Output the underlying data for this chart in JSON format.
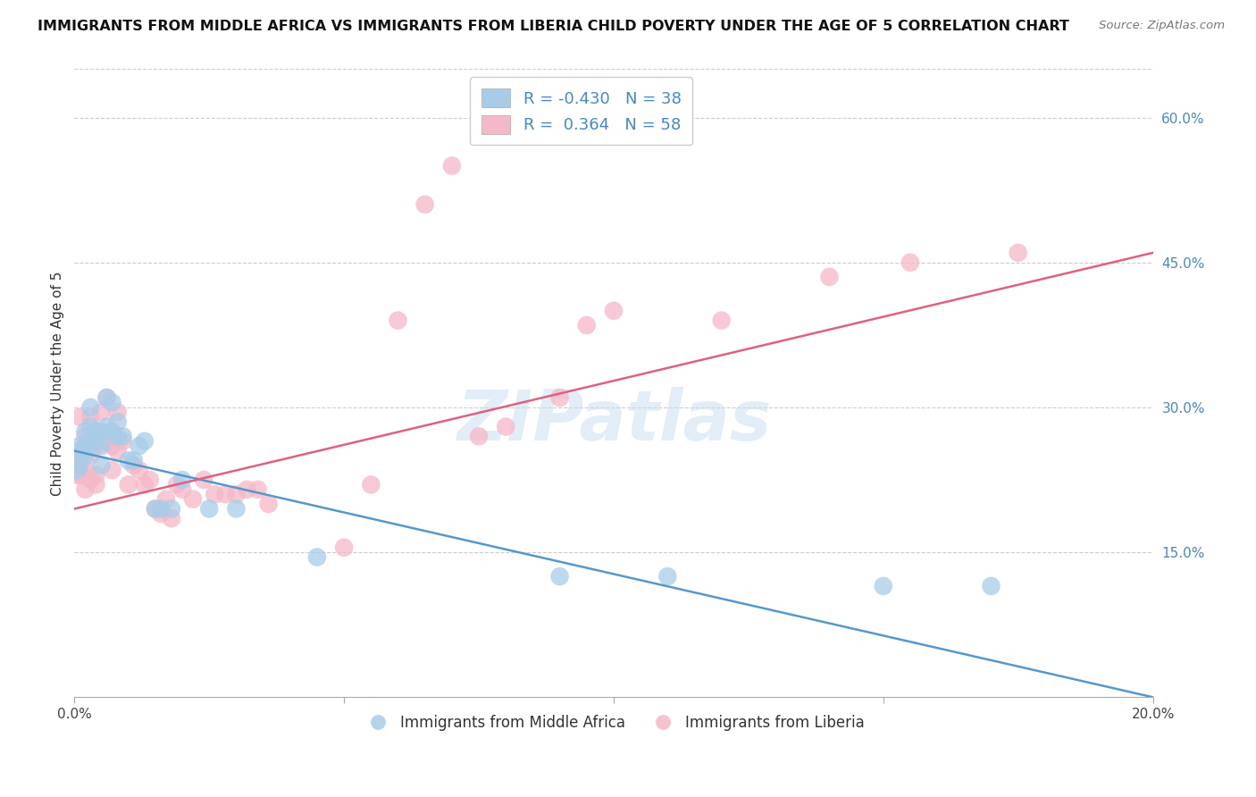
{
  "title": "IMMIGRANTS FROM MIDDLE AFRICA VS IMMIGRANTS FROM LIBERIA CHILD POVERTY UNDER THE AGE OF 5 CORRELATION CHART",
  "source": "Source: ZipAtlas.com",
  "ylabel": "Child Poverty Under the Age of 5",
  "xlim": [
    0.0,
    0.2
  ],
  "ylim": [
    0.0,
    0.65
  ],
  "xticks": [
    0.0,
    0.05,
    0.1,
    0.15,
    0.2
  ],
  "xticklabels": [
    "0.0%",
    "",
    "",
    "",
    "20.0%"
  ],
  "ytick_vals": [
    0.15,
    0.3,
    0.45,
    0.6
  ],
  "yticklabels": [
    "15.0%",
    "30.0%",
    "45.0%",
    "60.0%"
  ],
  "grid_color": "#cccccc",
  "background_color": "#ffffff",
  "watermark": "ZIPatlas",
  "blue_color": "#a8cce8",
  "pink_color": "#f4b8c8",
  "blue_line_color": "#5599cc",
  "pink_line_color": "#e06080",
  "R_blue": -0.43,
  "N_blue": 38,
  "R_pink": 0.364,
  "N_pink": 58,
  "legend_label_blue": "Immigrants from Middle Africa",
  "legend_label_pink": "Immigrants from Liberia",
  "blue_line_x0": 0.0,
  "blue_line_y0": 0.255,
  "blue_line_x1": 0.2,
  "blue_line_y1": 0.0,
  "pink_line_x0": 0.0,
  "pink_line_y0": 0.195,
  "pink_line_x1": 0.2,
  "pink_line_y1": 0.46,
  "blue_x": [
    0.0005,
    0.001,
    0.001,
    0.001,
    0.002,
    0.002,
    0.002,
    0.002,
    0.003,
    0.003,
    0.003,
    0.004,
    0.004,
    0.005,
    0.005,
    0.005,
    0.006,
    0.006,
    0.007,
    0.007,
    0.008,
    0.008,
    0.009,
    0.01,
    0.011,
    0.012,
    0.013,
    0.015,
    0.016,
    0.018,
    0.02,
    0.025,
    0.03,
    0.045,
    0.09,
    0.11,
    0.15,
    0.17
  ],
  "blue_y": [
    0.235,
    0.255,
    0.26,
    0.24,
    0.255,
    0.275,
    0.25,
    0.26,
    0.28,
    0.265,
    0.3,
    0.265,
    0.275,
    0.24,
    0.275,
    0.26,
    0.28,
    0.31,
    0.305,
    0.275,
    0.285,
    0.27,
    0.27,
    0.245,
    0.245,
    0.26,
    0.265,
    0.195,
    0.195,
    0.195,
    0.225,
    0.195,
    0.195,
    0.145,
    0.125,
    0.125,
    0.115,
    0.115
  ],
  "pink_x": [
    0.0005,
    0.0005,
    0.001,
    0.001,
    0.001,
    0.001,
    0.002,
    0.002,
    0.002,
    0.003,
    0.003,
    0.003,
    0.004,
    0.004,
    0.004,
    0.005,
    0.005,
    0.005,
    0.006,
    0.006,
    0.007,
    0.007,
    0.008,
    0.008,
    0.009,
    0.01,
    0.011,
    0.012,
    0.013,
    0.014,
    0.015,
    0.016,
    0.017,
    0.018,
    0.019,
    0.02,
    0.022,
    0.024,
    0.026,
    0.028,
    0.03,
    0.032,
    0.034,
    0.036,
    0.05,
    0.055,
    0.06,
    0.065,
    0.07,
    0.075,
    0.08,
    0.09,
    0.095,
    0.1,
    0.12,
    0.14,
    0.155,
    0.175
  ],
  "pink_y": [
    0.23,
    0.24,
    0.24,
    0.25,
    0.23,
    0.29,
    0.235,
    0.215,
    0.27,
    0.225,
    0.25,
    0.29,
    0.23,
    0.26,
    0.22,
    0.265,
    0.275,
    0.295,
    0.265,
    0.31,
    0.235,
    0.26,
    0.295,
    0.255,
    0.265,
    0.22,
    0.24,
    0.235,
    0.22,
    0.225,
    0.195,
    0.19,
    0.205,
    0.185,
    0.22,
    0.215,
    0.205,
    0.225,
    0.21,
    0.21,
    0.21,
    0.215,
    0.215,
    0.2,
    0.155,
    0.22,
    0.39,
    0.51,
    0.55,
    0.27,
    0.28,
    0.31,
    0.385,
    0.4,
    0.39,
    0.435,
    0.45,
    0.46
  ]
}
